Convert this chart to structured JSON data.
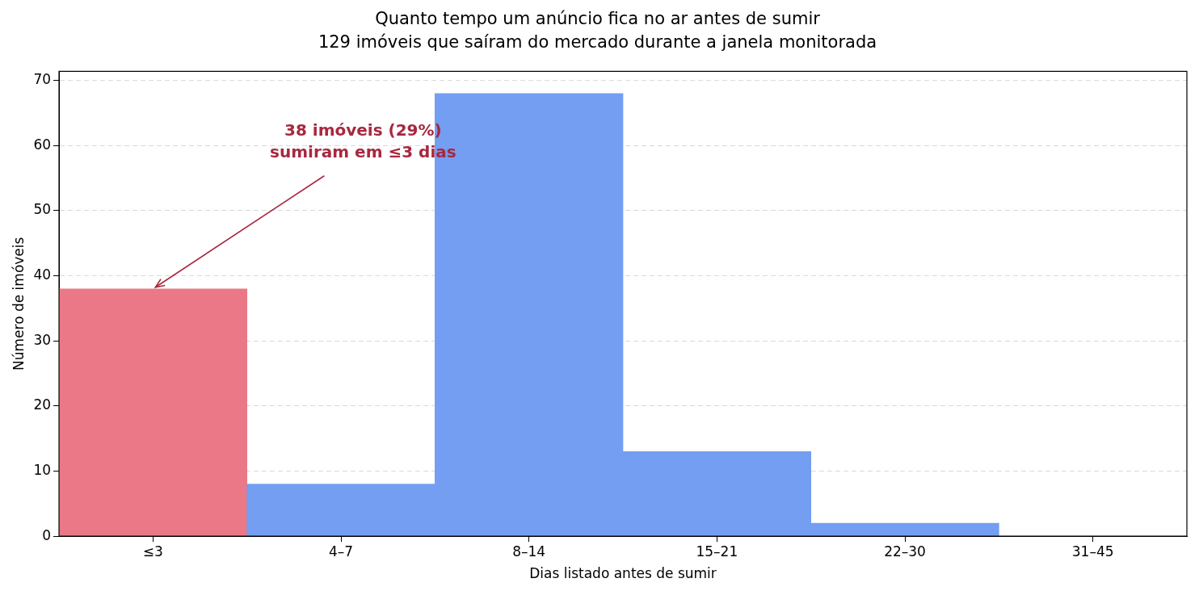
{
  "chart_data": {
    "type": "bar",
    "title": "Quanto tempo um anúncio fica no ar antes de sumir",
    "subtitle": "129 imóveis que saíram do mercado durante a janela monitorada",
    "xlabel": "Dias listado antes de sumir",
    "ylabel": "Número de imóveis",
    "categories": [
      "≤3",
      "4–7",
      "8–14",
      "15–21",
      "22–30",
      "31–45"
    ],
    "values": [
      38,
      8,
      68,
      13,
      2,
      0
    ],
    "colors": [
      "#eb7886",
      "#739ef2",
      "#739ef2",
      "#739ef2",
      "#739ef2",
      "#739ef2"
    ],
    "ylim": [
      0,
      71.4
    ],
    "yticks": [
      0,
      10,
      20,
      30,
      40,
      50,
      60,
      70
    ],
    "grid": "y",
    "legend": false,
    "annotations": [
      {
        "text": "38 imóveis (29%)\nsumiram em ≤3 dias",
        "x": "≤3",
        "y": 38
      }
    ]
  }
}
